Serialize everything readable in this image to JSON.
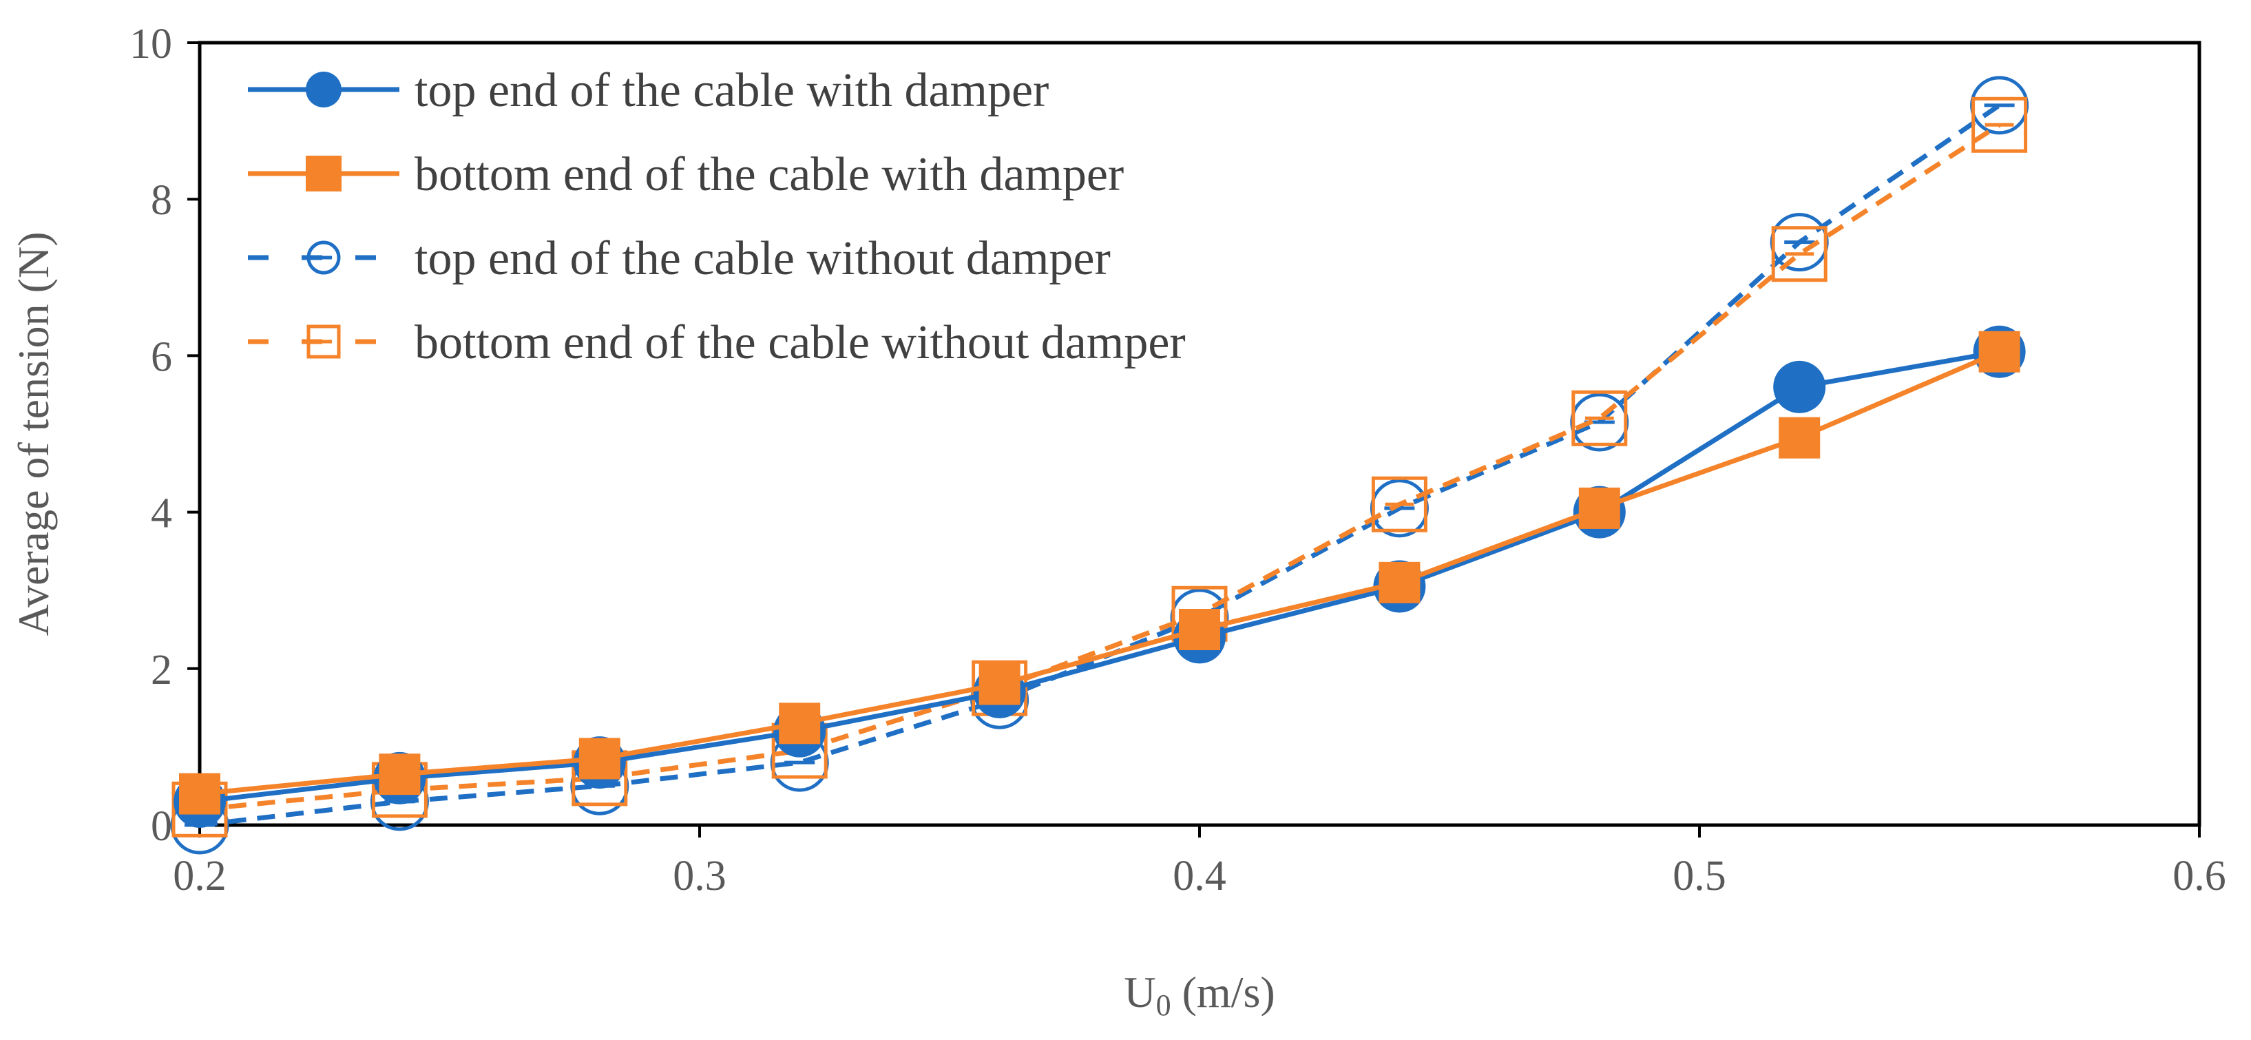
{
  "chart_data": {
    "type": "line",
    "xlabel_main": "U",
    "xlabel_sub": "0",
    "xlabel_unit": " (m/s)",
    "ylabel": "Average of tension (N)",
    "xlim": [
      0.2,
      0.6
    ],
    "ylim": [
      0,
      10
    ],
    "x_ticks": [
      "0.2",
      "0.3",
      "0.4",
      "0.5",
      "0.6"
    ],
    "y_ticks": [
      "0",
      "2",
      "4",
      "6",
      "8",
      "10"
    ],
    "x": [
      0.2,
      0.24,
      0.28,
      0.32,
      0.36,
      0.4,
      0.44,
      0.48,
      0.52,
      0.56
    ],
    "grid": false,
    "legend_position": "top-left",
    "series": [
      {
        "name": "top end of the cable with damper",
        "color": "#1f6fc5",
        "line": "solid",
        "marker": "filled-circle",
        "values": [
          0.3,
          0.6,
          0.8,
          1.2,
          1.7,
          2.4,
          3.05,
          4.0,
          5.6,
          6.05
        ]
      },
      {
        "name": "bottom end of the cable with damper",
        "color": "#f5832a",
        "line": "solid",
        "marker": "filled-square",
        "values": [
          0.4,
          0.65,
          0.85,
          1.3,
          1.8,
          2.5,
          3.1,
          4.05,
          4.95,
          6.05
        ]
      },
      {
        "name": "top end of the cable without damper",
        "color": "#1f6fc5",
        "line": "dashed",
        "marker": "open-circle",
        "values": [
          0.0,
          0.3,
          0.5,
          0.8,
          1.6,
          2.65,
          4.05,
          5.15,
          7.45,
          9.2
        ]
      },
      {
        "name": "bottom end of the cable without damper",
        "color": "#f5832a",
        "line": "dashed",
        "marker": "open-square",
        "values": [
          0.2,
          0.45,
          0.6,
          0.95,
          1.75,
          2.7,
          4.1,
          5.2,
          7.3,
          8.95
        ]
      }
    ]
  }
}
